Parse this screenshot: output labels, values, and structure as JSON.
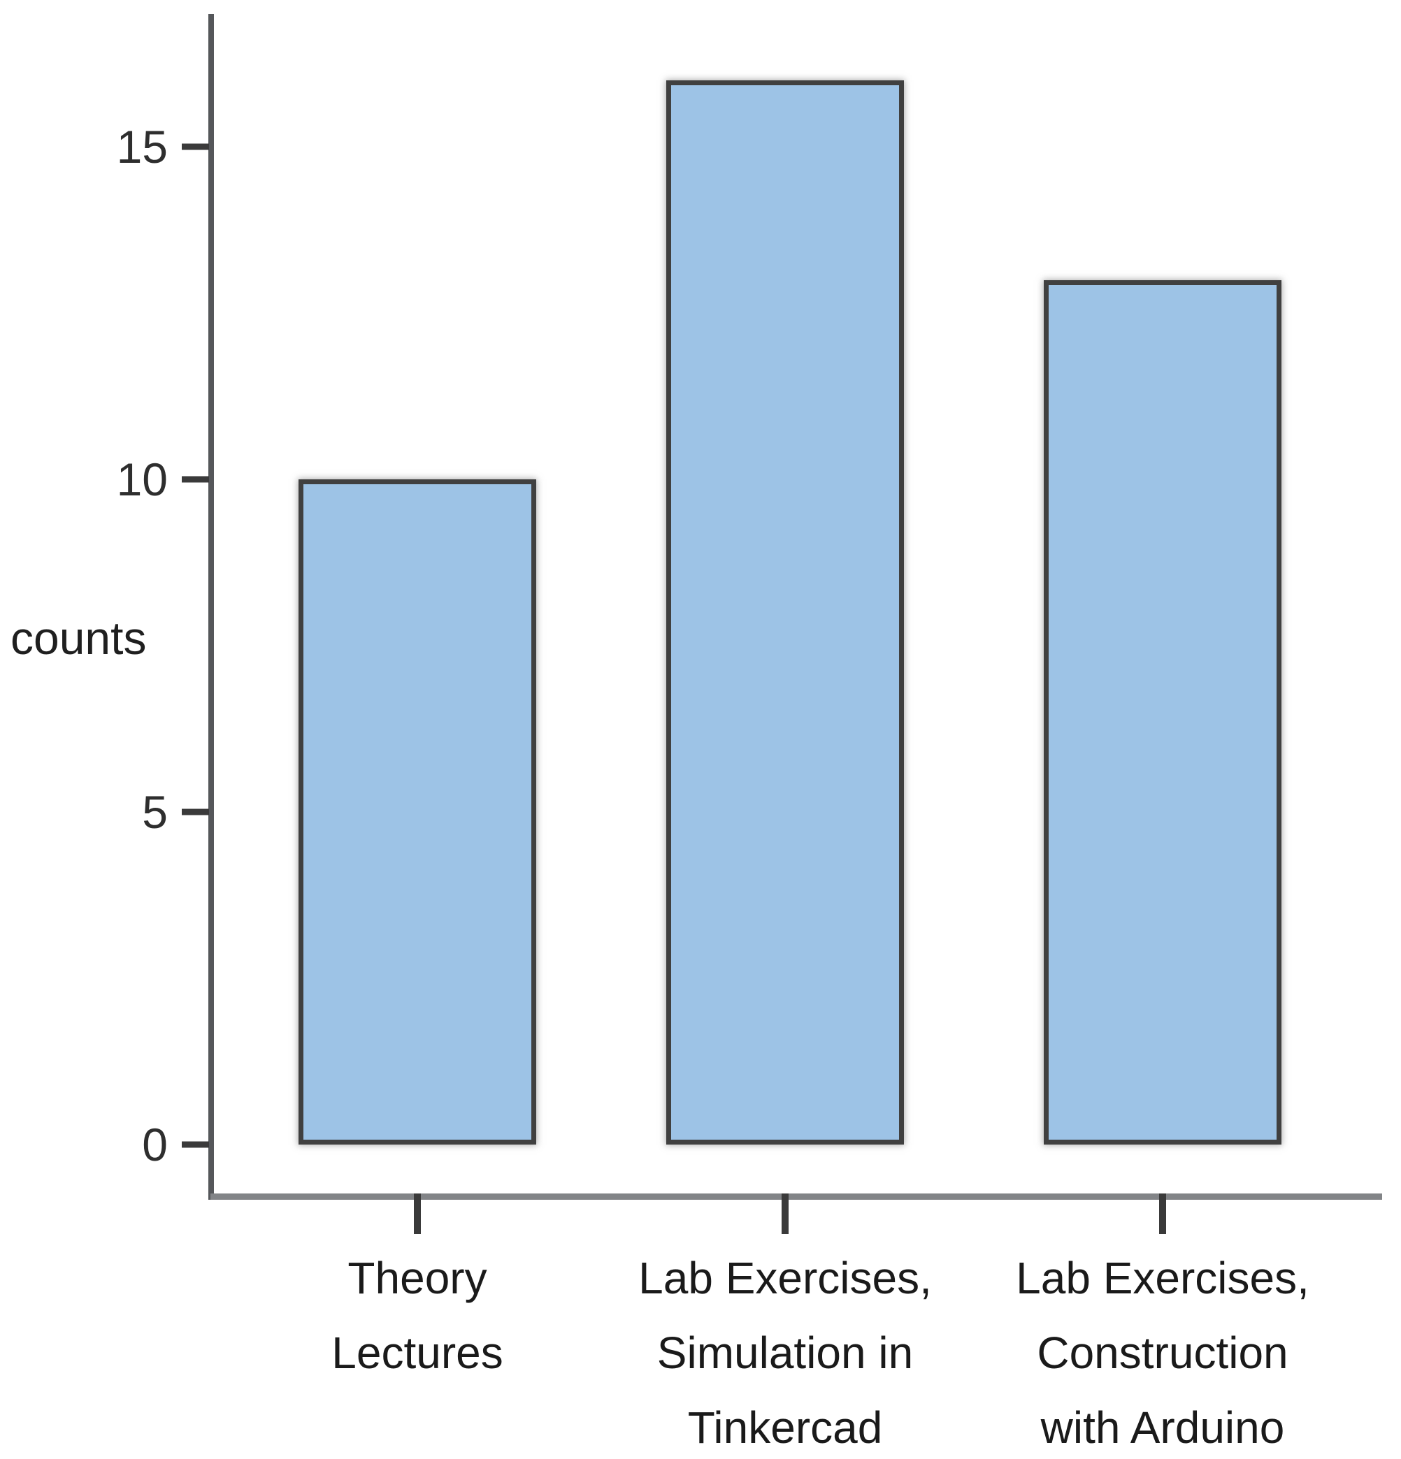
{
  "chart_data": {
    "type": "bar",
    "title": "",
    "xlabel": "",
    "ylabel": "counts",
    "categories": [
      "Theory Lectures",
      "Lab Exercises, Simulation in Tinkercad",
      "Lab Exercises, Construction with Arduino"
    ],
    "categories_lines": [
      [
        "Theory",
        "Lectures"
      ],
      [
        "Lab Exercises,",
        "Simulation in",
        "Tinkercad"
      ],
      [
        "Lab Exercises,",
        "Construction",
        "with Arduino"
      ]
    ],
    "values": [
      10,
      16,
      13
    ],
    "yticks": [
      0,
      5,
      10,
      15
    ],
    "ylim": [
      0,
      17
    ],
    "grid": false,
    "legend_position": "none",
    "bar_fill_color": "#9DC3E6",
    "bar_border_color": "#404040",
    "y_axis_color": "#55575a",
    "x_axis_color": "#828487",
    "tick_color": "#3a3a3a",
    "text_color": "#1a1a1a"
  }
}
